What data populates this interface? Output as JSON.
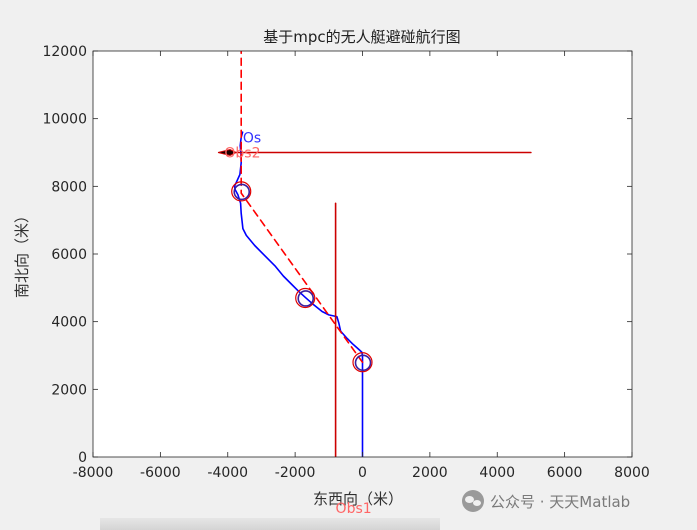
{
  "chart_data": {
    "type": "line",
    "title": "基于mpc的无人艇避碰航行图",
    "xlabel": "东西向（米）",
    "ylabel": "南北向（米）",
    "xlim": [
      -8000,
      8000
    ],
    "ylim": [
      0,
      12000
    ],
    "xticks": [
      "-8000",
      "-6000",
      "-4000",
      "-2000",
      "0",
      "2000",
      "4000",
      "6000",
      "8000"
    ],
    "yticks": [
      "0",
      "2000",
      "4000",
      "6000",
      "8000",
      "10000",
      "12000"
    ],
    "grid": false,
    "series": [
      {
        "role": "own-ship-track",
        "color": "#0000ff",
        "style": "solid",
        "x": [
          0,
          0,
          -20,
          -150,
          -300,
          -450,
          -650,
          -700,
          -760,
          -1000,
          -1200,
          -1450,
          -1700,
          -1900,
          -2100,
          -2350,
          -2600,
          -2900,
          -3200,
          -3450,
          -3550,
          -3600,
          -3620,
          -3700,
          -3780,
          -3800,
          -3730,
          -3640,
          -3600,
          -3610,
          -3630,
          -3600,
          -3560
        ],
        "y": [
          0,
          3000,
          3100,
          3220,
          3350,
          3500,
          3720,
          3950,
          4150,
          4200,
          4300,
          4500,
          4720,
          4900,
          5100,
          5350,
          5650,
          5950,
          6250,
          6550,
          6750,
          7200,
          7500,
          7750,
          7900,
          8000,
          8150,
          8350,
          8700,
          9000,
          9200,
          9450,
          9600
        ]
      },
      {
        "role": "own-ship-planned-route",
        "color": "#ff0000",
        "style": "dashed",
        "x": [
          0,
          -3600,
          -3600
        ],
        "y": [
          2800,
          7800,
          12000
        ]
      },
      {
        "name": "Obs1",
        "role": "obstacle-vessel-1",
        "color": "#cc0000",
        "style": "solid",
        "x": [
          -800,
          -800
        ],
        "y": [
          0,
          7500
        ]
      },
      {
        "name": "Obs2",
        "role": "obstacle-vessel-2",
        "color": "#cc0000",
        "style": "solid",
        "x": [
          -4000,
          5000
        ],
        "y": [
          9000,
          9000
        ]
      }
    ],
    "waypoints": [
      {
        "x": 0,
        "y": 2800
      },
      {
        "x": -1700,
        "y": 4700
      },
      {
        "x": -3600,
        "y": 7850
      }
    ],
    "own_ship_marker": {
      "x": -4050,
      "y": 9000
    },
    "annotations": [
      {
        "text": "Os",
        "x": -3550,
        "y": 9300,
        "color": "#3333ff"
      },
      {
        "text": "Obs2",
        "x": -4100,
        "y": 8850,
        "color": "#ff6666"
      },
      {
        "text": "Obs1",
        "x": -800,
        "y": -1650,
        "color": "#ff6666"
      }
    ],
    "colors": {
      "track": "#0000ff",
      "route": "#ff0000",
      "obstacle": "#cc0000",
      "label_os": "#3333ff",
      "label_obs": "#ff6666",
      "figure_bg": "#f0f0f0",
      "axes_bg": "#ffffff"
    }
  },
  "watermark": {
    "icon": "wechat-icon",
    "text": "公众号 · 天天Matlab"
  }
}
